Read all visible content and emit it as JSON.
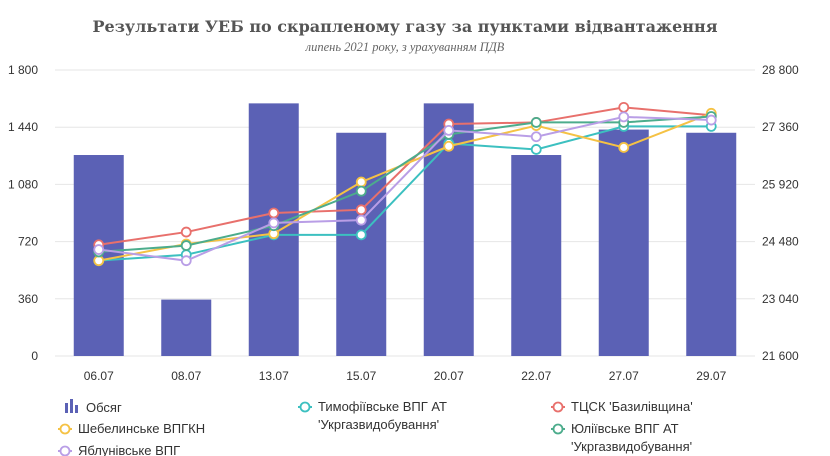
{
  "chart_data": {
    "type": "bar+line",
    "title": "Результати УЕБ по скрапленому газу за пунктами відвантаження",
    "subtitle": "липень 2021 року, з урахуванням ПДВ",
    "categories": [
      "06.07",
      "08.07",
      "13.07",
      "15.07",
      "20.07",
      "22.07",
      "27.07",
      "29.07"
    ],
    "y_left": {
      "ticks": [
        "0",
        "360",
        "720",
        "1 080",
        "1 440",
        "1 800"
      ],
      "ylim": [
        0,
        1800
      ]
    },
    "y_right": {
      "ticks": [
        "21 600",
        "23 040",
        "24 480",
        "25 920",
        "27 360",
        "28 800"
      ],
      "ylim": [
        21600,
        28800
      ]
    },
    "bar_series": {
      "name": "Обсяг",
      "color": "#5b61b5",
      "values": [
        1265,
        355,
        1590,
        1405,
        1590,
        1265,
        1425,
        1405
      ]
    },
    "line_series": [
      {
        "name": "Тимофіївське ВПГ АТ 'Укргазвидобування'",
        "color": "#3cc0c0",
        "values": [
          24000,
          24150,
          24650,
          24650,
          26950,
          26800,
          27380,
          27380
        ]
      },
      {
        "name": "ТЦСК 'Базилівщина'",
        "color": "#e8706c",
        "values": [
          24400,
          24720,
          25200,
          25280,
          27440,
          27480,
          27860,
          27660
        ]
      },
      {
        "name": "Шебелинське ВПГКН",
        "color": "#f5c244",
        "values": [
          24000,
          24420,
          24680,
          25980,
          26880,
          27400,
          26850,
          27710
        ]
      },
      {
        "name": "Юліївське ВПГ АТ 'Укргазвидобування'",
        "color": "#4cac8c",
        "values": [
          24220,
          24380,
          24880,
          25750,
          27180,
          27480,
          27480,
          27630
        ]
      },
      {
        "name": "Яблунівське ВПГ",
        "color": "#b99ee6",
        "values": [
          24280,
          24000,
          24950,
          25020,
          27280,
          27120,
          27620,
          27540
        ]
      }
    ],
    "legend_position": "bottom",
    "grid": true
  }
}
